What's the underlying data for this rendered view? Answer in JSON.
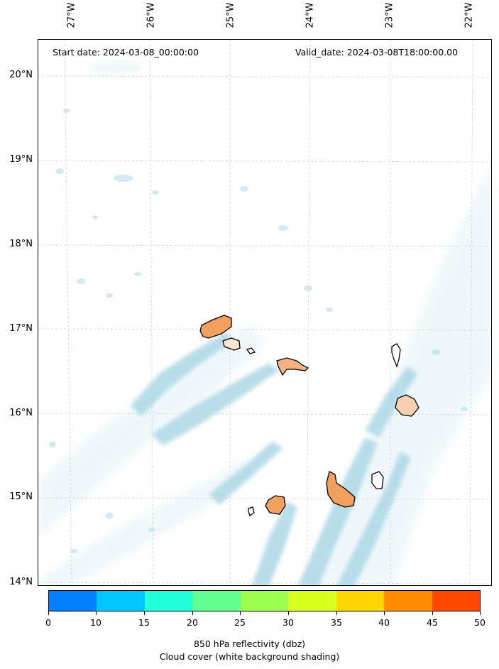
{
  "header": {
    "start_date": "Start date: 2024-03-08_00:00:00",
    "valid_date": "Valid_date: 2024-03-08T18:00:00.00"
  },
  "longitude_labels": [
    "27°W",
    "26°W",
    "25°W",
    "24°W",
    "23°W",
    "22°W"
  ],
  "latitude_labels": [
    "20°N",
    "19°N",
    "18°N",
    "17°N",
    "16°N",
    "15°N",
    "14°N"
  ],
  "islands": [
    {
      "name": "santo-antao",
      "fill": "#f2a060"
    },
    {
      "name": "sao-vicente",
      "fill": "#fbe5d2"
    },
    {
      "name": "santa-luzia",
      "fill": "#ffffff"
    },
    {
      "name": "sao-nicolau",
      "fill": "#f4b283"
    },
    {
      "name": "sal",
      "fill": "#ffffff"
    },
    {
      "name": "boa-vista",
      "fill": "#f8d0b0"
    },
    {
      "name": "maio",
      "fill": "#ffffff"
    },
    {
      "name": "santiago",
      "fill": "#f2a060"
    },
    {
      "name": "fogo",
      "fill": "#f2a060"
    },
    {
      "name": "brava",
      "fill": "#ffffff"
    }
  ],
  "colorbar": {
    "ticks": [
      "0",
      "10",
      "15",
      "20",
      "25",
      "30",
      "35",
      "40",
      "45",
      "50"
    ],
    "colors": [
      "#0080ff",
      "#00c8ff",
      "#20ffd8",
      "#60ff90",
      "#9cff50",
      "#d8ff20",
      "#ffd700",
      "#ff8c00",
      "#ff4800"
    ]
  },
  "caption": {
    "line1": "850 hPa reflectivity (dbz)",
    "line2": "Cloud cover (white background shading)"
  },
  "colors": {
    "cloud": "#add8e6",
    "grid": "#cccccc"
  }
}
